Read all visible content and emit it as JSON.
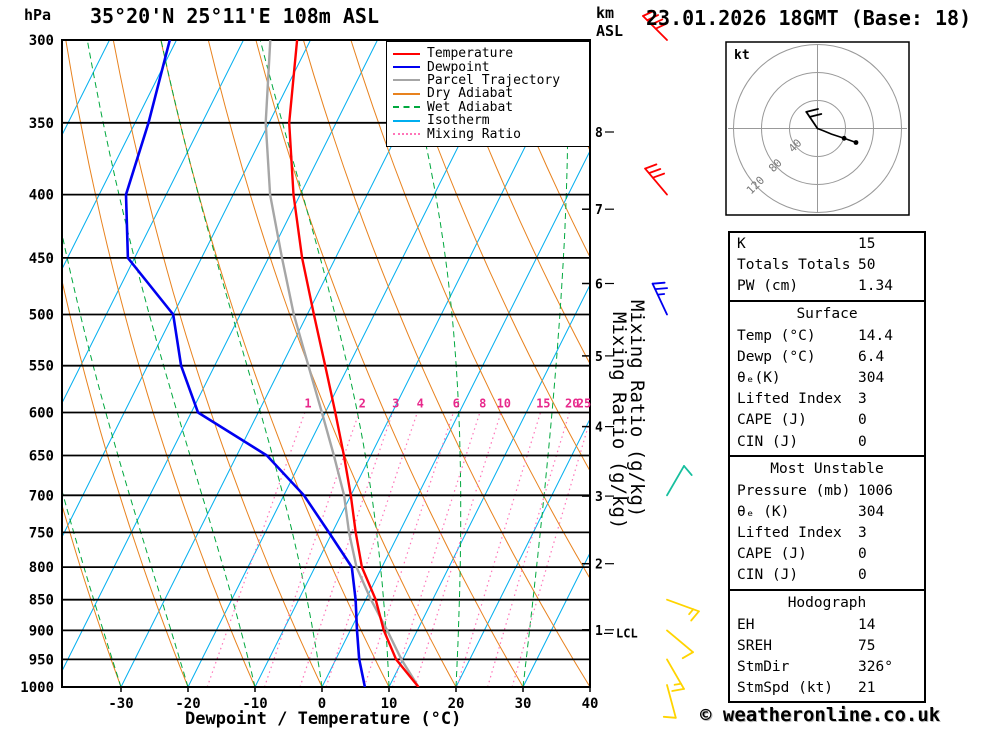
{
  "header": {
    "pressure_unit": "hPa",
    "title": "35°20'N 25°11'E 108m ASL",
    "altitude_unit_km": "km",
    "altitude_unit_asl": "ASL",
    "datetime": "23.01.2026 18GMT (Base: 18)"
  },
  "chart_data": {
    "type": "skewt_log_p_sounding",
    "xlabel": "Dewpoint / Temperature (°C)",
    "x_ticks": [
      -30,
      -20,
      -10,
      0,
      10,
      20,
      30,
      40
    ],
    "x_range_c": [
      -38,
      40
    ],
    "pressure_ticks_hpa": [
      300,
      350,
      400,
      450,
      500,
      550,
      600,
      650,
      700,
      750,
      800,
      850,
      900,
      950,
      1000
    ],
    "pressure_range_hpa": [
      300,
      1000
    ],
    "km_asl_ticks": [
      {
        "km": 8,
        "hpa": 356
      },
      {
        "km": 7,
        "hpa": 411
      },
      {
        "km": 6,
        "hpa": 472
      },
      {
        "km": 5,
        "hpa": 540
      },
      {
        "km": 4,
        "hpa": 616
      },
      {
        "km": 3,
        "hpa": 701
      },
      {
        "km": 2,
        "hpa": 795
      },
      {
        "km": 1,
        "hpa": 899
      }
    ],
    "lcl": {
      "label": "LCL",
      "hpa": 905
    },
    "isotherms_c": {
      "min": -100,
      "max": 40,
      "step": 10
    },
    "dry_adiabats_c": {
      "min": -30,
      "max": 110,
      "step": 10
    },
    "wet_adiabats_c": {
      "min": -60,
      "max": 40,
      "step": 10
    },
    "mixing_ratio_g_kg": [
      1,
      2,
      3,
      4,
      6,
      8,
      10,
      15,
      20,
      25
    ],
    "mixing_ratio_axis_label": "Mixing Ratio (g/kg)",
    "series": {
      "temperature": {
        "pressure_hpa": [
          300,
          350,
          400,
          450,
          500,
          550,
          600,
          650,
          700,
          750,
          800,
          850,
          900,
          950,
          1000
        ],
        "temp_c": [
          -52,
          -47,
          -41,
          -35,
          -29,
          -23.5,
          -18.5,
          -14,
          -10,
          -6.5,
          -3,
          1.5,
          5,
          9,
          14.4
        ]
      },
      "dewpoint": {
        "pressure_hpa": [
          300,
          350,
          400,
          450,
          500,
          550,
          600,
          650,
          700,
          750,
          800,
          850,
          900,
          950,
          1000
        ],
        "temp_c": [
          -71,
          -68,
          -66,
          -61,
          -50,
          -45,
          -39,
          -25.5,
          -17,
          -10.5,
          -4.5,
          -1.5,
          1,
          3.5,
          6.4
        ]
      },
      "parcel": {
        "pressure_hpa": [
          300,
          350,
          400,
          450,
          500,
          550,
          600,
          650,
          700,
          750,
          800,
          850,
          900,
          950,
          1000
        ],
        "temp_c": [
          -56,
          -50.5,
          -44.5,
          -38,
          -32,
          -26,
          -20.5,
          -15.5,
          -11,
          -7.5,
          -3.8,
          0.8,
          5.5,
          9.8,
          14.4
        ]
      }
    },
    "legend": [
      {
        "label": "Temperature",
        "color_key": "temperature",
        "style": "solid"
      },
      {
        "label": "Dewpoint",
        "color_key": "dewpoint",
        "style": "solid"
      },
      {
        "label": "Parcel Trajectory",
        "color_key": "parcel",
        "style": "solid"
      },
      {
        "label": "Dry Adiabat",
        "color_key": "dry_adiabat",
        "style": "solid"
      },
      {
        "label": "Wet Adiabat",
        "color_key": "wet_adiabat",
        "style": "dashed"
      },
      {
        "label": "Isotherm",
        "color_key": "isotherm",
        "style": "solid"
      },
      {
        "label": "Mixing Ratio",
        "color_key": "mixing_ratio",
        "style": "dotted"
      }
    ],
    "wind_barbs": [
      {
        "hpa": 300,
        "color": "#FF0000",
        "dir_deg": 315,
        "speed_kt": 40
      },
      {
        "hpa": 400,
        "color": "#FF0000",
        "dir_deg": 320,
        "speed_kt": 30
      },
      {
        "hpa": 500,
        "color": "#0000F0",
        "dir_deg": 335,
        "speed_kt": 25
      },
      {
        "hpa": 700,
        "color": "#17BF9E",
        "dir_deg": 30,
        "speed_kt": 10
      },
      {
        "hpa": 850,
        "color": "#FFD400",
        "dir_deg": 110,
        "speed_kt": 15
      },
      {
        "hpa": 900,
        "color": "#FFD400",
        "dir_deg": 130,
        "speed_kt": 10
      },
      {
        "hpa": 950,
        "color": "#FFD400",
        "dir_deg": 150,
        "speed_kt": 15
      },
      {
        "hpa": 1000,
        "color": "#FFD400",
        "dir_deg": 165,
        "speed_kt": 10
      }
    ],
    "colors": {
      "temperature": "#FF0000",
      "dewpoint": "#0000F0",
      "parcel": "#A6A6A6",
      "dry_adiabat": "#E8821E",
      "wet_adiabat": "#00A83E",
      "isotherm": "#00AEEF",
      "mixing_ratio": "#FF74B8",
      "mixing_label": "#E8298C",
      "pressure_line": "#000000",
      "pink_axis_label": "#FFAAD0"
    }
  },
  "hodograph": {
    "unit": "kt",
    "rings": [
      40,
      80,
      120
    ],
    "trace_kt": [
      [
        0,
        0
      ],
      [
        8,
        -3
      ],
      [
        20,
        -8
      ],
      [
        38,
        -14
      ],
      [
        55,
        -20
      ]
    ],
    "dot_kt": [
      [
        38,
        -14
      ],
      [
        55,
        -20
      ]
    ],
    "storm_barb": {
      "dir_deg": 326,
      "speed_kt": 21
    }
  },
  "tables": {
    "order": [
      "indices",
      "surface",
      "most_unstable",
      "hodograph_stats"
    ],
    "indices": {
      "rows": [
        [
          "K",
          "15"
        ],
        [
          "Totals Totals",
          "50"
        ],
        [
          "PW (cm)",
          "1.34"
        ]
      ]
    },
    "surface": {
      "title": "Surface",
      "rows": [
        [
          "Temp (°C)",
          "14.4"
        ],
        [
          "Dewp (°C)",
          "6.4"
        ],
        [
          "θₑ(K)",
          "304"
        ],
        [
          "Lifted Index",
          "3"
        ],
        [
          "CAPE (J)",
          "0"
        ],
        [
          "CIN (J)",
          "0"
        ]
      ]
    },
    "most_unstable": {
      "title": "Most Unstable",
      "rows": [
        [
          "Pressure (mb)",
          "1006"
        ],
        [
          "θₑ (K)",
          "304"
        ],
        [
          "Lifted Index",
          "3"
        ],
        [
          "CAPE (J)",
          "0"
        ],
        [
          "CIN (J)",
          "0"
        ]
      ]
    },
    "hodograph_stats": {
      "title": "Hodograph",
      "rows": [
        [
          "EH",
          "14"
        ],
        [
          "SREH",
          "75"
        ],
        [
          "StmDir",
          "326°"
        ],
        [
          "StmSpd (kt)",
          "21"
        ]
      ]
    }
  },
  "footer": {
    "copyright": "© weatheronline.co.uk"
  }
}
